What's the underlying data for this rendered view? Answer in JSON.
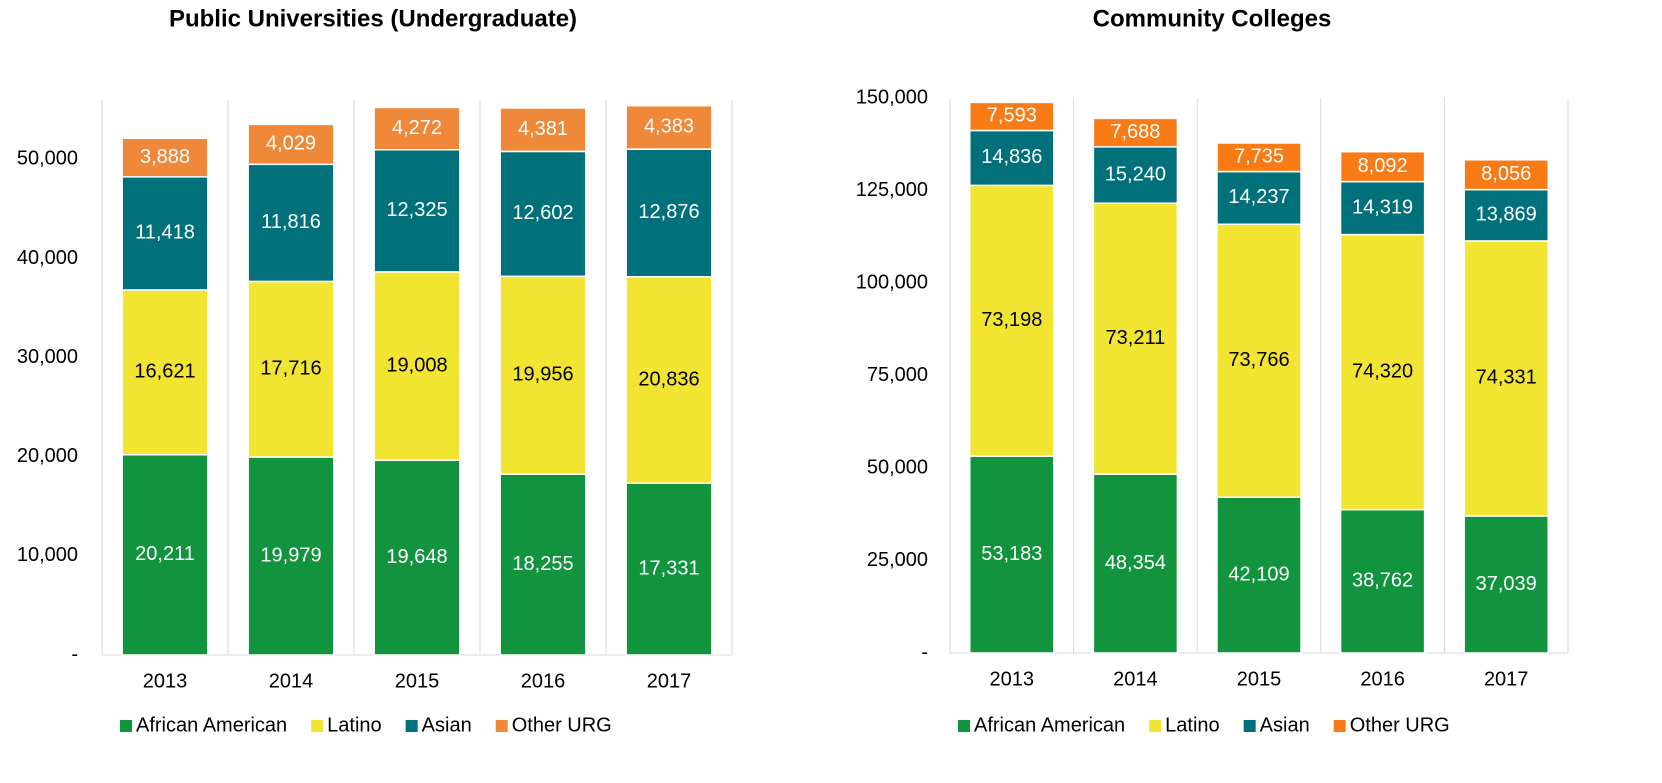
{
  "chart_data": [
    {
      "type": "stacked_bar",
      "title": "Public Universities (Undergraduate)",
      "categories": [
        "2013",
        "2014",
        "2015",
        "2016",
        "2017"
      ],
      "ylim": [
        0,
        56000
      ],
      "yticks": [
        {
          "value": 0,
          "label": "-"
        },
        {
          "value": 10000,
          "label": "10,000"
        },
        {
          "value": 20000,
          "label": "20,000"
        },
        {
          "value": 30000,
          "label": "30,000"
        },
        {
          "value": 40000,
          "label": "40,000"
        },
        {
          "value": 50000,
          "label": "50,000"
        }
      ],
      "legend": "bottom",
      "series": [
        {
          "name": "African American",
          "color": "#12943f",
          "label_color": "#ffffff",
          "values": [
            20211,
            19979,
            19648,
            18255,
            17331
          ],
          "value_labels": [
            "20,211",
            "19,979",
            "19,648",
            "18,255",
            "17,331"
          ]
        },
        {
          "name": "Latino",
          "color": "#f2e531",
          "label_color": "#000000",
          "values": [
            16621,
            17716,
            19008,
            19956,
            20836
          ],
          "value_labels": [
            "16,621",
            "17,716",
            "19,008",
            "19,956",
            "20,836"
          ]
        },
        {
          "name": "Asian",
          "color": "#00707b",
          "label_color": "#ffffff",
          "values": [
            11418,
            11816,
            12325,
            12602,
            12876
          ],
          "value_labels": [
            "11,418",
            "11,816",
            "12,325",
            "12,602",
            "12,876"
          ]
        },
        {
          "name": "Other URG",
          "color": "#f0883a",
          "label_color": "#ffffff",
          "values": [
            3888,
            4029,
            4272,
            4381,
            4383
          ],
          "value_labels": [
            "3,888",
            "4,029",
            "4,272",
            "4,381",
            "4,383"
          ]
        }
      ]
    },
    {
      "type": "stacked_bar",
      "title": "Community Colleges",
      "categories": [
        "2013",
        "2014",
        "2015",
        "2016",
        "2017"
      ],
      "ylim": [
        0,
        150000
      ],
      "yticks": [
        {
          "value": 0,
          "label": "-"
        },
        {
          "value": 25000,
          "label": "25,000"
        },
        {
          "value": 50000,
          "label": "50,000"
        },
        {
          "value": 75000,
          "label": "75,000"
        },
        {
          "value": 100000,
          "label": "100,000"
        },
        {
          "value": 125000,
          "label": "125,000"
        },
        {
          "value": 150000,
          "label": "150,000"
        }
      ],
      "legend": "bottom",
      "series": [
        {
          "name": "African American",
          "color": "#12943f",
          "label_color": "#ffffff",
          "values": [
            53183,
            48354,
            42109,
            38762,
            37039
          ],
          "value_labels": [
            "53,183",
            "48,354",
            "42,109",
            "38,762",
            "37,039"
          ]
        },
        {
          "name": "Latino",
          "color": "#f2e531",
          "label_color": "#000000",
          "values": [
            73198,
            73211,
            73766,
            74320,
            74331
          ],
          "value_labels": [
            "73,198",
            "73,211",
            "73,766",
            "74,320",
            "74,331"
          ]
        },
        {
          "name": "Asian",
          "color": "#00707b",
          "label_color": "#ffffff",
          "values": [
            14836,
            15240,
            14237,
            14319,
            13869
          ],
          "value_labels": [
            "14,836",
            "15,240",
            "14,237",
            "14,319",
            "13,869"
          ]
        },
        {
          "name": "Other URG",
          "color": "#f97b16",
          "label_color": "#ffffff",
          "values": [
            7593,
            7688,
            7735,
            8092,
            8056
          ],
          "value_labels": [
            "7,593",
            "7,688",
            "7,735",
            "8,092",
            "8,056"
          ]
        }
      ]
    }
  ]
}
